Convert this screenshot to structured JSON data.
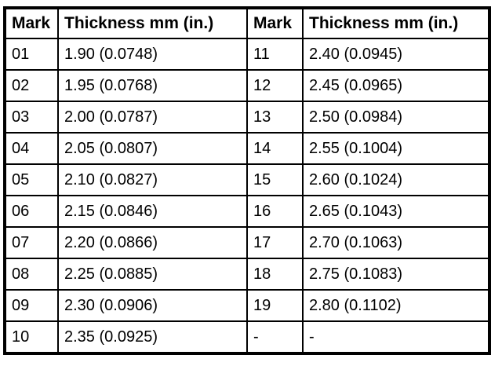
{
  "table": {
    "headers": [
      "Mark",
      "Thickness mm (in.)",
      "Mark",
      "Thickness mm (in.)"
    ],
    "rows": [
      [
        "01",
        "1.90 (0.0748)",
        "11",
        "2.40 (0.0945)"
      ],
      [
        "02",
        "1.95 (0.0768)",
        "12",
        "2.45 (0.0965)"
      ],
      [
        "03",
        "2.00 (0.0787)",
        "13",
        "2.50 (0.0984)"
      ],
      [
        "04",
        "2.05 (0.0807)",
        "14",
        "2.55 (0.1004)"
      ],
      [
        "05",
        "2.10 (0.0827)",
        "15",
        "2.60 (0.1024)"
      ],
      [
        "06",
        "2.15 (0.0846)",
        "16",
        "2.65 (0.1043)"
      ],
      [
        "07",
        "2.20 (0.0866)",
        "17",
        "2.70 (0.1063)"
      ],
      [
        "08",
        "2.25 (0.0885)",
        "18",
        "2.75 (0.1083)"
      ],
      [
        "09",
        "2.30 (0.0906)",
        "19",
        "2.80 (0.1102)"
      ],
      [
        "10",
        "2.35 (0.0925)",
        "-",
        "-"
      ]
    ],
    "colors": {
      "border": "#000000",
      "background": "#ffffff",
      "text": "#000000"
    }
  }
}
